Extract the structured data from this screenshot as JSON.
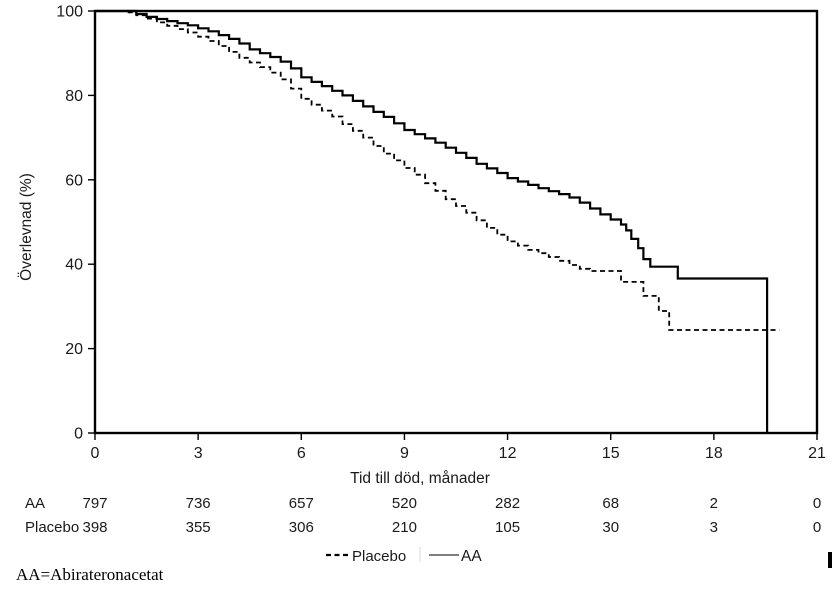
{
  "footnote": "AA=Abirateronacetat",
  "chart_data": {
    "type": "line",
    "subtype": "kaplan-meier-step",
    "title": "",
    "xlabel": "Tid till död, månader",
    "ylabel": "Överlevnad (%)",
    "xlim": [
      0,
      21
    ],
    "ylim": [
      0,
      100
    ],
    "grid": false,
    "x_ticks": [
      0,
      3,
      6,
      9,
      12,
      15,
      18,
      21
    ],
    "y_ticks": [
      0,
      20,
      40,
      60,
      80,
      100
    ],
    "frame": true,
    "colors": {
      "curve": "#000000",
      "background": "#ffffff"
    },
    "series": [
      {
        "name": "AA",
        "style": "solid",
        "color": "#000000",
        "stroke_width": 2.2,
        "points": [
          [
            0,
            100
          ],
          [
            0.9,
            100
          ],
          [
            1.2,
            99.3
          ],
          [
            1.5,
            98.6
          ],
          [
            1.8,
            98.1
          ],
          [
            2.1,
            97.6
          ],
          [
            2.4,
            97.1
          ],
          [
            2.7,
            96.6
          ],
          [
            3.0,
            95.9
          ],
          [
            3.3,
            95.2
          ],
          [
            3.6,
            94.3
          ],
          [
            3.9,
            93.4
          ],
          [
            4.2,
            92.3
          ],
          [
            4.5,
            90.9
          ],
          [
            4.8,
            90.0
          ],
          [
            5.1,
            89.1
          ],
          [
            5.4,
            88.0
          ],
          [
            5.7,
            86.4
          ],
          [
            6.0,
            84.3
          ],
          [
            6.3,
            83.2
          ],
          [
            6.6,
            82.2
          ],
          [
            6.9,
            81.1
          ],
          [
            7.2,
            80.0
          ],
          [
            7.5,
            78.7
          ],
          [
            7.8,
            77.4
          ],
          [
            8.1,
            76.1
          ],
          [
            8.4,
            74.9
          ],
          [
            8.7,
            73.4
          ],
          [
            9.0,
            71.8
          ],
          [
            9.3,
            70.8
          ],
          [
            9.6,
            69.8
          ],
          [
            9.9,
            68.8
          ],
          [
            10.2,
            67.6
          ],
          [
            10.5,
            66.4
          ],
          [
            10.8,
            65.2
          ],
          [
            11.1,
            63.8
          ],
          [
            11.4,
            62.7
          ],
          [
            11.7,
            61.6
          ],
          [
            12.0,
            60.4
          ],
          [
            12.3,
            59.6
          ],
          [
            12.6,
            58.8
          ],
          [
            12.9,
            58.0
          ],
          [
            13.2,
            57.3
          ],
          [
            13.5,
            56.6
          ],
          [
            13.8,
            55.8
          ],
          [
            14.1,
            54.6
          ],
          [
            14.4,
            53.2
          ],
          [
            14.7,
            51.8
          ],
          [
            15.0,
            50.6
          ],
          [
            15.3,
            49.4
          ],
          [
            15.45,
            48.0
          ],
          [
            15.6,
            46.0
          ],
          [
            15.8,
            43.8
          ],
          [
            15.95,
            41.2
          ],
          [
            16.15,
            39.4
          ],
          [
            16.95,
            36.6
          ],
          [
            19.55,
            0
          ]
        ]
      },
      {
        "name": "Placebo",
        "style": "dashed",
        "color": "#000000",
        "stroke_width": 1.8,
        "dash": "5 3.5",
        "points": [
          [
            0,
            100
          ],
          [
            0.9,
            99.7
          ],
          [
            1.2,
            99.0
          ],
          [
            1.5,
            98.2
          ],
          [
            1.8,
            97.3
          ],
          [
            2.1,
            96.5
          ],
          [
            2.4,
            95.7
          ],
          [
            2.7,
            94.9
          ],
          [
            3.0,
            93.9
          ],
          [
            3.3,
            92.9
          ],
          [
            3.6,
            91.7
          ],
          [
            3.9,
            90.3
          ],
          [
            4.2,
            88.9
          ],
          [
            4.5,
            87.8
          ],
          [
            4.8,
            86.7
          ],
          [
            5.1,
            85.4
          ],
          [
            5.4,
            83.8
          ],
          [
            5.7,
            81.6
          ],
          [
            6.0,
            79.2
          ],
          [
            6.3,
            77.8
          ],
          [
            6.6,
            76.4
          ],
          [
            6.9,
            75.0
          ],
          [
            7.2,
            73.2
          ],
          [
            7.5,
            71.6
          ],
          [
            7.8,
            70.0
          ],
          [
            8.1,
            68.0
          ],
          [
            8.4,
            66.2
          ],
          [
            8.7,
            64.6
          ],
          [
            9.0,
            62.8
          ],
          [
            9.3,
            61.2
          ],
          [
            9.6,
            59.2
          ],
          [
            9.9,
            57.4
          ],
          [
            10.2,
            55.4
          ],
          [
            10.5,
            53.8
          ],
          [
            10.8,
            52.2
          ],
          [
            11.1,
            50.4
          ],
          [
            11.4,
            48.6
          ],
          [
            11.7,
            47.0
          ],
          [
            12.0,
            45.4
          ],
          [
            12.3,
            44.4
          ],
          [
            12.6,
            43.4
          ],
          [
            12.9,
            42.6
          ],
          [
            13.2,
            41.7
          ],
          [
            13.5,
            40.8
          ],
          [
            13.8,
            39.8
          ],
          [
            14.1,
            38.9
          ],
          [
            14.4,
            38.4
          ],
          [
            15.3,
            35.8
          ],
          [
            15.95,
            32.5
          ],
          [
            16.4,
            28.9
          ],
          [
            16.7,
            24.4
          ],
          [
            19.9,
            24.4
          ]
        ]
      }
    ],
    "risk_table": {
      "columns_months": [
        0,
        3,
        6,
        9,
        12,
        15,
        18,
        21
      ],
      "rows": [
        {
          "label": "AA",
          "counts": [
            "797",
            "736",
            "657",
            "520",
            "282",
            "68",
            "2",
            "0"
          ]
        },
        {
          "label": "Placebo",
          "counts": [
            "398",
            "355",
            "306",
            "210",
            "105",
            "30",
            "3",
            "0"
          ]
        }
      ]
    },
    "legend": {
      "position": "bottom",
      "entries": [
        {
          "label": "Placebo",
          "style": "dashed"
        },
        {
          "label": "AA",
          "style": "solid"
        }
      ]
    }
  }
}
